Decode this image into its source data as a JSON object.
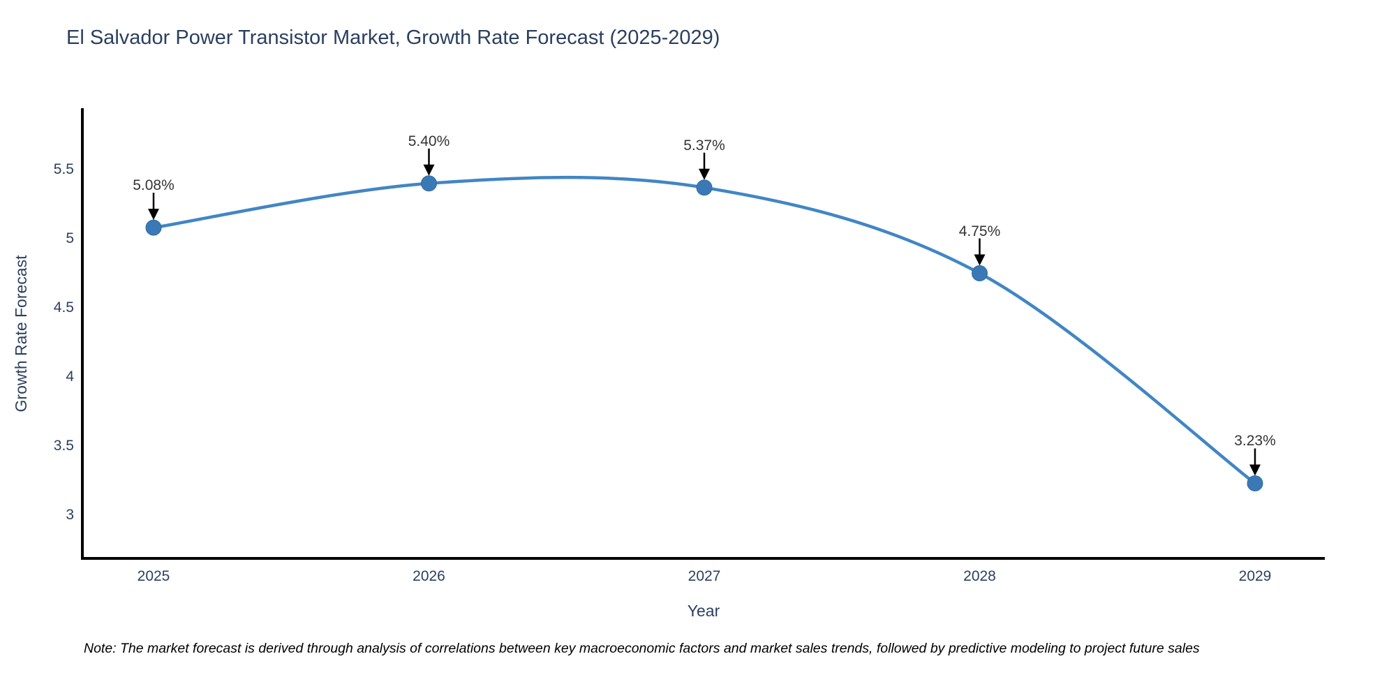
{
  "chart_data": {
    "type": "line",
    "title": "El Salvador Power Transistor Market, Growth Rate Forecast (2025-2029)",
    "xlabel": "Year",
    "ylabel": "Growth Rate Forecast",
    "categories": [
      "2025",
      "2026",
      "2027",
      "2028",
      "2029"
    ],
    "series": [
      {
        "name": "Growth Rate Forecast",
        "values": [
          5.08,
          5.4,
          5.37,
          4.75,
          3.23
        ]
      }
    ],
    "point_labels": [
      "5.08%",
      "5.40%",
      "5.37%",
      "4.75%",
      "3.23%"
    ],
    "ytick_values": [
      5.5,
      5,
      4.5,
      4,
      3.5,
      3
    ],
    "ytick_labels": [
      "5.5",
      "5",
      "4.5",
      "4",
      "3.5",
      "3"
    ],
    "ylim": [
      2.69,
      5.92
    ],
    "grid": false,
    "legend": "none",
    "line_shape": "spline",
    "marker": "circle",
    "annotation_arrows": true,
    "colors": {
      "line": "#4186c5",
      "marker": "#3a79b5",
      "marker_edge": "#2e6da4",
      "arrow": "#000000",
      "axis": "#000000",
      "tick_text": "#2a3f5f",
      "annotation_text": "#333333"
    },
    "note": "Note: The market forecast is derived through analysis of correlations between key macroeconomic factors and market sales trends, followed by predictive modeling to project future sales"
  }
}
